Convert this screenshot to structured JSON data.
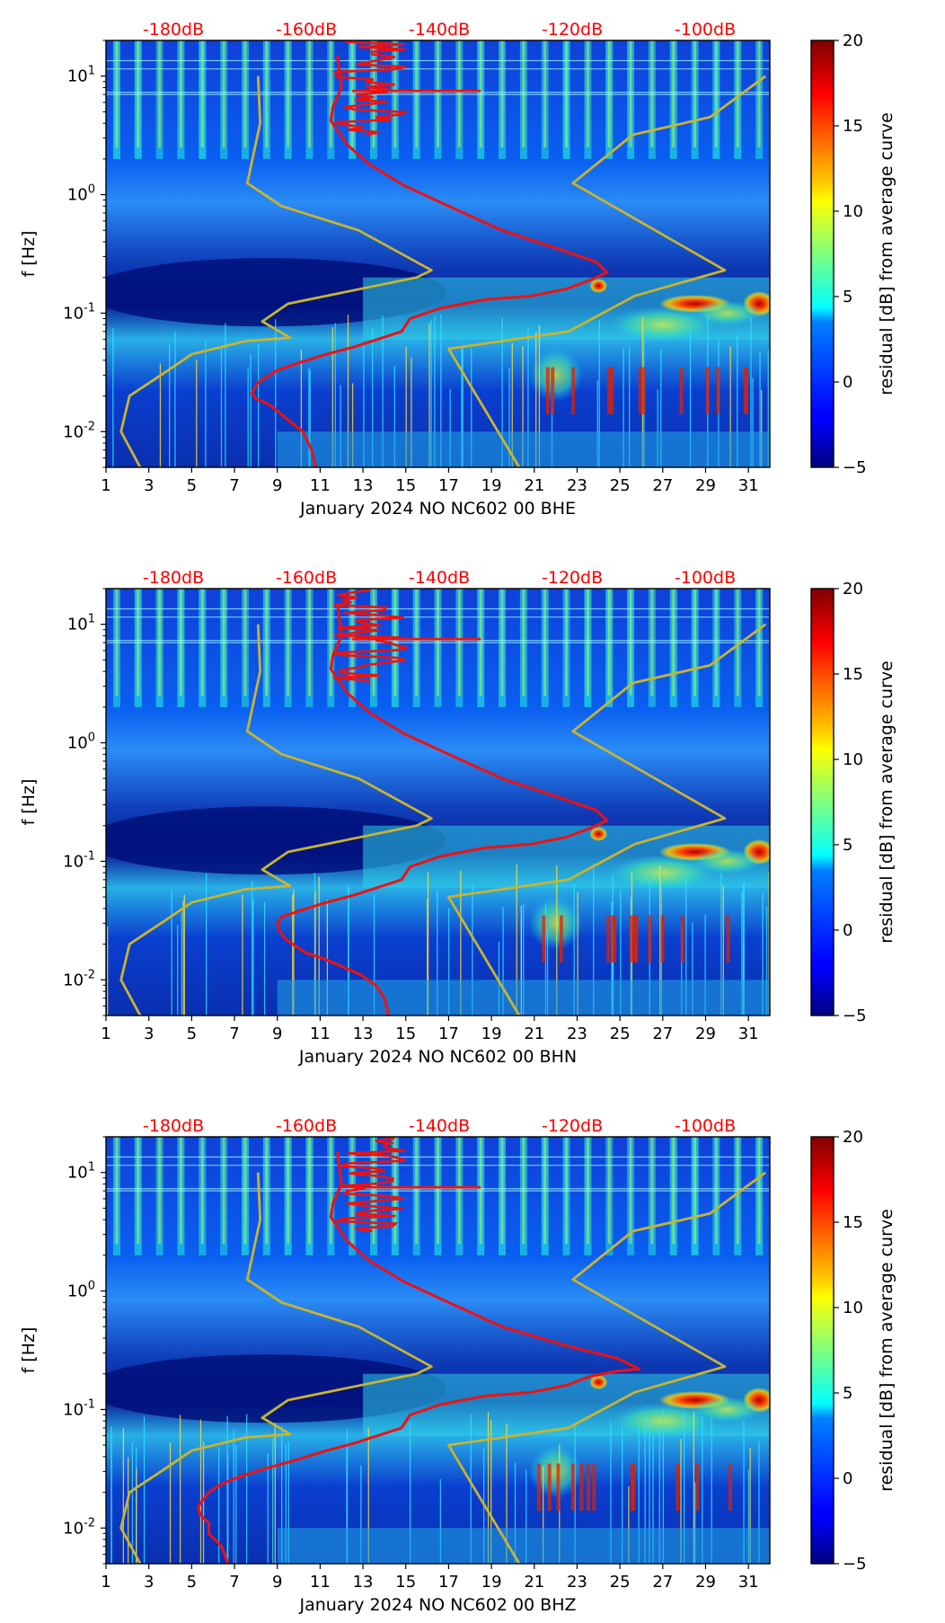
{
  "figure": {
    "colorbar_label": "residual [dB] from average curve",
    "colorbar_ticks": [
      -5,
      0,
      5,
      10,
      15,
      20
    ],
    "colorbar_range": [
      -5,
      20
    ],
    "colors": {
      "noise_curve": "#ee1111",
      "model_curve": "#c8b431",
      "top_axis_label": "#ff0000"
    }
  },
  "chart_data": [
    {
      "type": "heatmap",
      "title": "",
      "xlabel": "January 2024 NO NC602 00 BHE",
      "ylabel": "f [Hz]",
      "x_ticks": [
        "1",
        "3",
        "5",
        "7",
        "9",
        "11",
        "13",
        "15",
        "17",
        "19",
        "21",
        "23",
        "25",
        "27",
        "29",
        "31"
      ],
      "x_range": [
        1,
        32
      ],
      "y_scale": "log",
      "y_range": [
        0.005,
        20
      ],
      "y_ticks": [
        "10^-2",
        "10^-1",
        "10^0",
        "10^1"
      ],
      "top_axis_ticks": [
        "-180dB",
        "-160dB",
        "-140dB",
        "-120dB",
        "-100dB"
      ],
      "series": [
        {
          "name": "median noise curve (red)",
          "x": [
            10.8,
            10.6,
            10.2,
            9.4,
            9.0,
            8.6,
            8.0,
            7.8,
            8.1,
            9.0,
            10.0,
            11.3,
            12.6,
            13.8,
            14.8,
            15.2,
            16.6,
            18.7,
            20.9,
            22.5,
            23.6,
            24.4,
            23.9,
            22.1,
            19.5,
            17.0,
            14.9,
            13.3,
            12.3,
            11.8,
            11.5,
            11.6,
            12.0,
            11.8
          ],
          "y": [
            0.005,
            0.007,
            0.01,
            0.013,
            0.015,
            0.017,
            0.019,
            0.021,
            0.026,
            0.033,
            0.038,
            0.045,
            0.052,
            0.061,
            0.07,
            0.09,
            0.11,
            0.13,
            0.14,
            0.16,
            0.19,
            0.22,
            0.27,
            0.35,
            0.5,
            0.8,
            1.2,
            1.8,
            2.6,
            3.5,
            4.2,
            5.5,
            8,
            15
          ]
        },
        {
          "name": "noise model bounds (yellow)",
          "x": [
            8.1,
            8.2,
            7.6,
            9.2,
            12.8,
            16.2,
            15.5,
            9.5,
            8.3,
            9.6,
            7.5,
            5.0,
            3.8,
            2.1,
            1.7,
            2.6
          ],
          "y": [
            10,
            4,
            1.25,
            0.8,
            0.5,
            0.23,
            0.2,
            0.12,
            0.085,
            0.062,
            0.058,
            0.045,
            0.032,
            0.02,
            0.01,
            0.005
          ]
        },
        {
          "name": "noise model bounds upper (yellow)",
          "x": [
            31.8,
            29.2,
            25.6,
            22.8,
            29.9,
            25.7,
            22.6,
            17.0,
            20.3
          ],
          "y": [
            10,
            4.5,
            3.2,
            1.25,
            0.23,
            0.14,
            0.07,
            0.05,
            0.005
          ]
        }
      ]
    },
    {
      "type": "heatmap",
      "title": "",
      "xlabel": "January 2024 NO NC602 00 BHN",
      "ylabel": "f [Hz]",
      "x_ticks": [
        "1",
        "3",
        "5",
        "7",
        "9",
        "11",
        "13",
        "15",
        "17",
        "19",
        "21",
        "23",
        "25",
        "27",
        "29",
        "31"
      ],
      "x_range": [
        1,
        32
      ],
      "y_scale": "log",
      "y_range": [
        0.005,
        20
      ],
      "y_ticks": [
        "10^-2",
        "10^-1",
        "10^0",
        "10^1"
      ],
      "top_axis_ticks": [
        "-180dB",
        "-160dB",
        "-140dB",
        "-120dB",
        "-100dB"
      ],
      "series": [
        {
          "name": "median noise curve (red)",
          "x": [
            14.2,
            14.0,
            13.6,
            12.9,
            12.0,
            11.2,
            10.3,
            9.9,
            9.4,
            9.1,
            9.0,
            9.2,
            10.0,
            11.3,
            12.6,
            13.8,
            14.8,
            15.2,
            16.6,
            18.7,
            20.9,
            22.5,
            23.6,
            24.4,
            23.9,
            22.1,
            19.5,
            17.0,
            14.9,
            13.3,
            12.3,
            11.8,
            11.5,
            11.6,
            12.0,
            11.8
          ],
          "y": [
            0.005,
            0.007,
            0.009,
            0.011,
            0.013,
            0.015,
            0.017,
            0.019,
            0.022,
            0.026,
            0.03,
            0.034,
            0.038,
            0.045,
            0.052,
            0.061,
            0.07,
            0.09,
            0.11,
            0.13,
            0.14,
            0.16,
            0.19,
            0.22,
            0.27,
            0.35,
            0.5,
            0.8,
            1.2,
            1.8,
            2.6,
            3.5,
            4.2,
            5.5,
            8,
            15
          ]
        },
        {
          "name": "noise model bounds (yellow)",
          "x": [
            8.1,
            8.2,
            7.6,
            9.2,
            12.8,
            16.2,
            15.5,
            9.5,
            8.3,
            9.6,
            7.5,
            5.0,
            3.8,
            2.1,
            1.7,
            2.6
          ],
          "y": [
            10,
            4,
            1.25,
            0.8,
            0.5,
            0.23,
            0.2,
            0.12,
            0.085,
            0.062,
            0.058,
            0.045,
            0.032,
            0.02,
            0.01,
            0.005
          ]
        },
        {
          "name": "noise model bounds upper (yellow)",
          "x": [
            31.8,
            29.2,
            25.6,
            22.8,
            29.9,
            25.7,
            22.6,
            17.0,
            20.3
          ],
          "y": [
            10,
            4.5,
            3.2,
            1.25,
            0.23,
            0.14,
            0.07,
            0.05,
            0.005
          ]
        }
      ]
    },
    {
      "type": "heatmap",
      "title": "",
      "xlabel": "January 2024 NO NC602 00 BHZ",
      "ylabel": "f [Hz]",
      "x_ticks": [
        "1",
        "3",
        "5",
        "7",
        "9",
        "11",
        "13",
        "15",
        "17",
        "19",
        "21",
        "23",
        "25",
        "27",
        "29",
        "31"
      ],
      "x_range": [
        1,
        32
      ],
      "y_scale": "log",
      "y_range": [
        0.005,
        20
      ],
      "y_ticks": [
        "10^-2",
        "10^-1",
        "10^0",
        "10^1"
      ],
      "top_axis_ticks": [
        "-180dB",
        "-160dB",
        "-140dB",
        "-120dB",
        "-100dB"
      ],
      "series": [
        {
          "name": "median noise curve (red)",
          "x": [
            6.7,
            6.4,
            5.8,
            5.8,
            5.4,
            5.3,
            5.5,
            5.8,
            6.3,
            7.2,
            8.5,
            10.0,
            11.3,
            12.6,
            13.8,
            14.8,
            15.2,
            16.6,
            18.7,
            20.9,
            22.5,
            23.6,
            24.8,
            25.9,
            24.9,
            22.4,
            19.5,
            17.0,
            14.9,
            13.3,
            12.3,
            11.8,
            11.5,
            11.6,
            12.0,
            11.8
          ],
          "y": [
            0.005,
            0.007,
            0.009,
            0.011,
            0.013,
            0.015,
            0.017,
            0.02,
            0.023,
            0.027,
            0.032,
            0.038,
            0.045,
            0.052,
            0.061,
            0.07,
            0.09,
            0.11,
            0.13,
            0.14,
            0.16,
            0.19,
            0.21,
            0.22,
            0.27,
            0.35,
            0.5,
            0.8,
            1.2,
            1.8,
            2.6,
            3.5,
            4.2,
            5.5,
            8,
            15
          ]
        },
        {
          "name": "noise model bounds (yellow)",
          "x": [
            8.1,
            8.2,
            7.6,
            9.2,
            12.8,
            16.2,
            15.5,
            9.5,
            8.3,
            9.6,
            7.5,
            5.0,
            3.8,
            2.1,
            1.7,
            2.6
          ],
          "y": [
            10,
            4,
            1.25,
            0.8,
            0.5,
            0.23,
            0.2,
            0.12,
            0.085,
            0.062,
            0.058,
            0.045,
            0.032,
            0.02,
            0.01,
            0.005
          ]
        },
        {
          "name": "noise model bounds upper (yellow)",
          "x": [
            31.8,
            29.2,
            25.6,
            22.8,
            29.9,
            25.7,
            22.6,
            17.0,
            20.3
          ],
          "y": [
            10,
            4.5,
            3.2,
            1.25,
            0.23,
            0.14,
            0.07,
            0.05,
            0.005
          ]
        }
      ]
    }
  ]
}
